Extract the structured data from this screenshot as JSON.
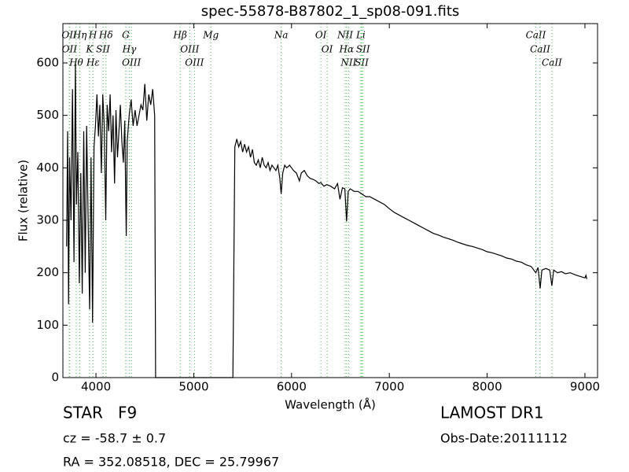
{
  "chart_data": {
    "type": "line",
    "title": "spec-55878-B87802_1_sp08-091.fits",
    "x_label": "Wavelength (Å)",
    "y_label": "Flux (relative)",
    "color": "#000000",
    "xlim": [
      3662,
      9129
    ],
    "ylim": [
      0,
      675
    ],
    "xticks": [
      4000,
      5000,
      6000,
      7000,
      8000,
      9000
    ],
    "yticks": [
      0,
      100,
      200,
      300,
      400,
      500,
      600
    ],
    "x": [
      3700,
      3710,
      3720,
      3730,
      3745,
      3760,
      3775,
      3790,
      3800,
      3815,
      3830,
      3845,
      3860,
      3875,
      3890,
      3905,
      3920,
      3935,
      3950,
      3965,
      3980,
      3995,
      4010,
      4025,
      4040,
      4055,
      4070,
      4085,
      4100,
      4115,
      4130,
      4145,
      4160,
      4175,
      4190,
      4205,
      4220,
      4235,
      4250,
      4265,
      4280,
      4295,
      4305,
      4310,
      4320,
      4340,
      4360,
      4380,
      4400,
      4420,
      4440,
      4460,
      4480,
      4500,
      4520,
      4540,
      4560,
      4580,
      4600,
      4610,
      5400,
      5420,
      5440,
      5460,
      5480,
      5500,
      5520,
      5540,
      5560,
      5580,
      5600,
      5620,
      5640,
      5660,
      5680,
      5700,
      5720,
      5740,
      5760,
      5780,
      5800,
      5820,
      5840,
      5860,
      5880,
      5894,
      5910,
      5930,
      5950,
      5980,
      6000,
      6020,
      6050,
      6080,
      6100,
      6130,
      6160,
      6190,
      6220,
      6250,
      6280,
      6300,
      6330,
      6360,
      6400,
      6440,
      6470,
      6495,
      6520,
      6545,
      6563,
      6580,
      6600,
      6640,
      6680,
      6720,
      6760,
      6800,
      6850,
      6900,
      6950,
      7000,
      7050,
      7100,
      7150,
      7200,
      7250,
      7300,
      7350,
      7400,
      7450,
      7500,
      7550,
      7600,
      7650,
      7700,
      7750,
      7800,
      7850,
      7900,
      7950,
      8000,
      8050,
      8100,
      8150,
      8200,
      8250,
      8300,
      8350,
      8400,
      8450,
      8498,
      8520,
      8542,
      8560,
      8600,
      8640,
      8662,
      8680,
      8720,
      8760,
      8800,
      8850,
      8900,
      8950,
      9000,
      9010,
      9020
    ],
    "values": [
      250,
      470,
      140,
      420,
      300,
      550,
      220,
      600,
      330,
      430,
      180,
      390,
      160,
      470,
      200,
      480,
      300,
      130,
      420,
      105,
      440,
      480,
      540,
      460,
      520,
      390,
      540,
      480,
      300,
      520,
      470,
      540,
      430,
      500,
      370,
      510,
      420,
      470,
      520,
      450,
      410,
      490,
      330,
      270,
      450,
      500,
      530,
      480,
      510,
      480,
      500,
      520,
      510,
      560,
      490,
      540,
      520,
      550,
      500,
      0,
      0,
      440,
      455,
      440,
      450,
      430,
      445,
      430,
      440,
      420,
      435,
      410,
      405,
      415,
      400,
      420,
      405,
      400,
      410,
      395,
      405,
      400,
      395,
      405,
      380,
      350,
      390,
      405,
      400,
      405,
      400,
      395,
      390,
      375,
      390,
      395,
      385,
      380,
      378,
      375,
      370,
      372,
      365,
      368,
      365,
      360,
      370,
      340,
      362,
      360,
      298,
      355,
      360,
      355,
      355,
      350,
      345,
      345,
      340,
      335,
      330,
      322,
      315,
      310,
      305,
      300,
      295,
      290,
      285,
      280,
      275,
      272,
      268,
      265,
      262,
      258,
      255,
      252,
      250,
      247,
      244,
      240,
      238,
      235,
      232,
      228,
      226,
      222,
      220,
      215,
      212,
      200,
      210,
      170,
      205,
      208,
      205,
      175,
      205,
      200,
      202,
      198,
      200,
      196,
      193,
      190,
      195,
      188
    ],
    "lines_color": "#4cb84c",
    "spectral_lines": [
      {
        "label": "OII",
        "wavelength": 3727
      },
      {
        "label": "OII",
        "wavelength": 3729
      },
      {
        "label": "Hθ",
        "wavelength": 3798
      },
      {
        "label": "Hη",
        "wavelength": 3835
      },
      {
        "label": "K",
        "wavelength": 3934
      },
      {
        "label": "H",
        "wavelength": 3968
      },
      {
        "label": "Hε",
        "wavelength": 3970
      },
      {
        "label": "SII",
        "wavelength": 4072
      },
      {
        "label": "Hδ",
        "wavelength": 4102
      },
      {
        "label": "G",
        "wavelength": 4305
      },
      {
        "label": "Hγ",
        "wavelength": 4341
      },
      {
        "label": "OIII",
        "wavelength": 4363
      },
      {
        "label": "Hβ",
        "wavelength": 4861
      },
      {
        "label": "OIII",
        "wavelength": 4959
      },
      {
        "label": "OIII",
        "wavelength": 5007
      },
      {
        "label": "Mg",
        "wavelength": 5175
      },
      {
        "label": "Na",
        "wavelength": 5894
      },
      {
        "label": "OI",
        "wavelength": 6300
      },
      {
        "label": "OI",
        "wavelength": 6364
      },
      {
        "label": "NII",
        "wavelength": 6548
      },
      {
        "label": "Hα",
        "wavelength": 6563
      },
      {
        "label": "NII",
        "wavelength": 6583
      },
      {
        "label": "Li",
        "wavelength": 6708
      },
      {
        "label": "SII",
        "wavelength": 6717
      },
      {
        "label": "SII",
        "wavelength": 6731
      },
      {
        "label": "CaII",
        "wavelength": 8498
      },
      {
        "label": "CaII",
        "wavelength": 8542
      },
      {
        "label": "CaII",
        "wavelength": 8662
      }
    ]
  },
  "footer": {
    "class": "STAR   F9",
    "redshift": "cz = -58.7 ± 0.7",
    "coords": "RA = 352.08518, DEC = 25.79967",
    "survey": "LAMOST DR1",
    "obs_date": "Obs-Date:20111112"
  }
}
